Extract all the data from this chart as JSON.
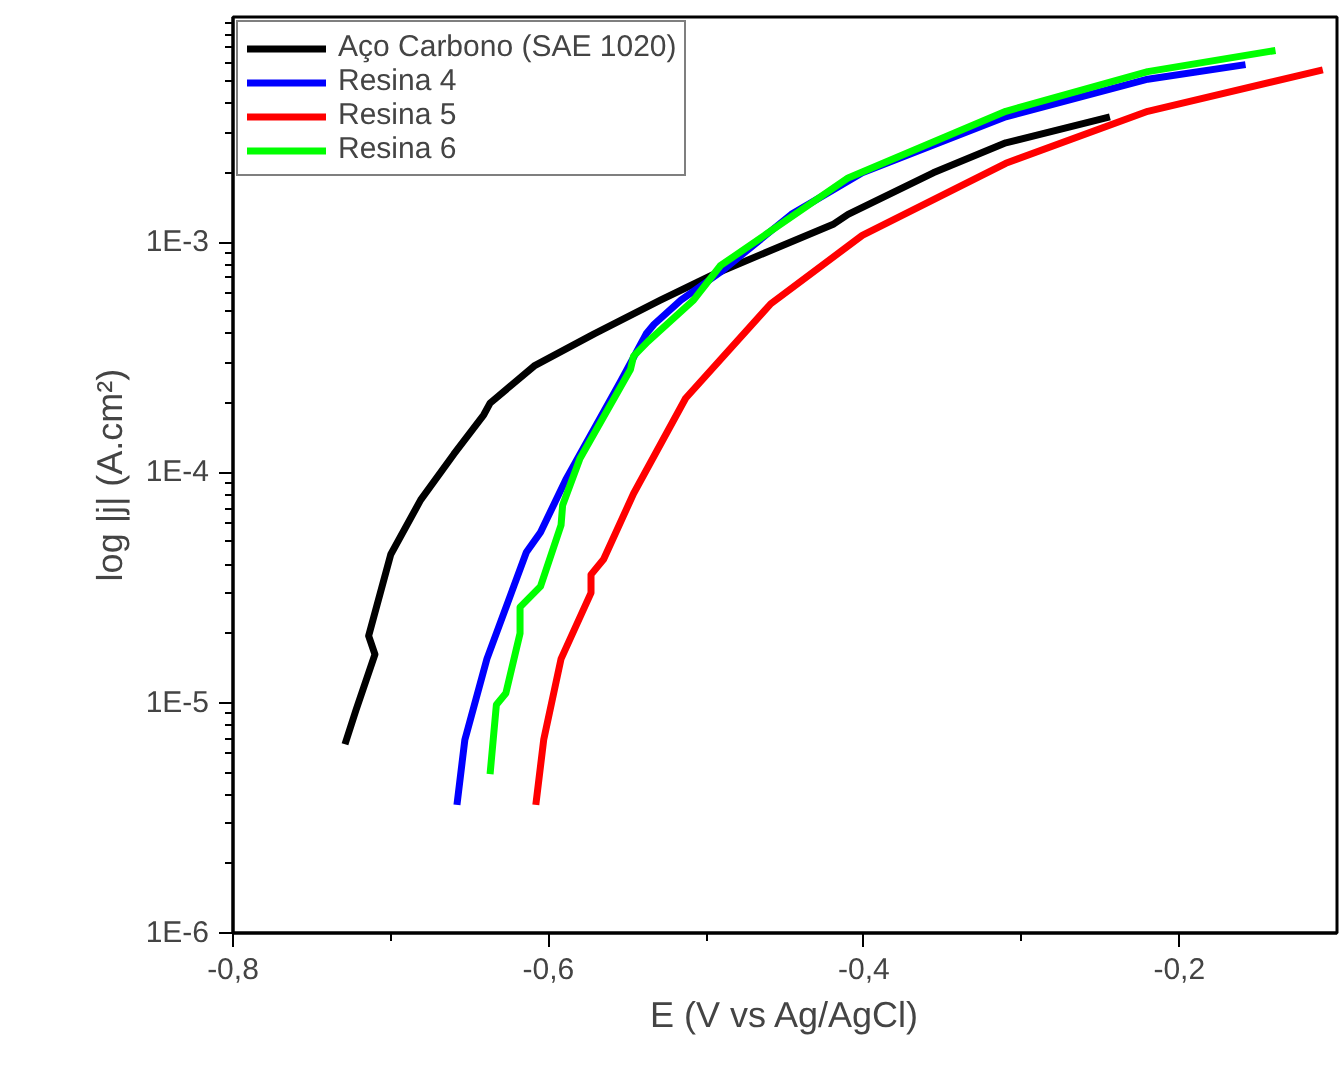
{
  "chart_data": {
    "type": "line",
    "xlabel": "E (V vs Ag/AgCl)",
    "ylabel": "log |j| (A.cm²)",
    "log": "y",
    "grid": false,
    "legend": "top left",
    "marker": "none",
    "line_style": "solid",
    "xlim": [
      -0.8,
      -0.1
    ],
    "ylim": [
      1e-06,
      0.0095
    ],
    "xticks": [
      {
        "value": -0.8,
        "label": "-0,8"
      },
      {
        "value": -0.6,
        "label": "-0,6"
      },
      {
        "value": -0.4,
        "label": "-0,4"
      },
      {
        "value": -0.2,
        "label": "-0,2"
      }
    ],
    "yticks": [
      {
        "value": 1e-06,
        "label": "1E-6"
      },
      {
        "value": 1e-05,
        "label": "1E-5"
      },
      {
        "value": 0.0001,
        "label": "1E-4"
      },
      {
        "value": 0.001,
        "label": "1E-3"
      }
    ],
    "series": [
      {
        "name": "Aço Carbono (SAE 1020)",
        "color": "#000000",
        "x": [
          -0.729,
          -0.722,
          -0.71,
          -0.714,
          -0.7,
          -0.681,
          -0.66,
          -0.641,
          -0.637,
          -0.609,
          -0.571,
          -0.529,
          -0.496,
          -0.419,
          -0.41,
          -0.356,
          -0.31,
          -0.244
        ],
        "values": [
          6.6e-06,
          9.3e-06,
          1.62e-05,
          1.95e-05,
          4.4e-05,
          7.6e-05,
          0.00012,
          0.000178,
          0.0002,
          0.00029,
          0.0004,
          0.00056,
          0.00072,
          0.0012,
          0.00132,
          0.002,
          0.0027,
          0.0035
        ]
      },
      {
        "name": "Resina 4",
        "color": "#0000ff",
        "x": [
          -0.658,
          -0.653,
          -0.639,
          -0.622,
          -0.614,
          -0.605,
          -0.589,
          -0.554,
          -0.538,
          -0.533,
          -0.516,
          -0.491,
          -0.446,
          -0.401,
          -0.31,
          -0.22,
          -0.158
        ],
        "values": [
          3.6e-06,
          6.9e-06,
          1.55e-05,
          3.2e-05,
          4.5e-05,
          5.5e-05,
          9.3e-05,
          0.00025,
          0.0004,
          0.00044,
          0.00056,
          0.00074,
          0.00132,
          0.002,
          0.0035,
          0.0051,
          0.0059
        ]
      },
      {
        "name": "Resina 5",
        "color": "#ff0000",
        "x": [
          -0.608,
          -0.603,
          -0.592,
          -0.573,
          -0.573,
          -0.565,
          -0.546,
          -0.513,
          -0.459,
          -0.401,
          -0.31,
          -0.22,
          -0.109
        ],
        "values": [
          3.6e-06,
          6.9e-06,
          1.55e-05,
          3e-05,
          3.6e-05,
          4.2e-05,
          8.1e-05,
          0.00021,
          0.00054,
          0.00107,
          0.0022,
          0.0037,
          0.0056
        ]
      },
      {
        "name": "Resina 6",
        "color": "#00ff00",
        "x": [
          -0.637,
          -0.633,
          -0.627,
          -0.618,
          -0.618,
          -0.605,
          -0.592,
          -0.591,
          -0.58,
          -0.548,
          -0.546,
          -0.537,
          -0.508,
          -0.491,
          -0.41,
          -0.31,
          -0.22,
          -0.139
        ],
        "values": [
          4.9e-06,
          9.8e-06,
          1.1e-05,
          2e-05,
          2.6e-05,
          3.2e-05,
          5.9e-05,
          7.2e-05,
          0.000115,
          0.00028,
          0.00032,
          0.00037,
          0.00056,
          0.00079,
          0.0019,
          0.0037,
          0.0055,
          0.0068
        ]
      }
    ]
  }
}
